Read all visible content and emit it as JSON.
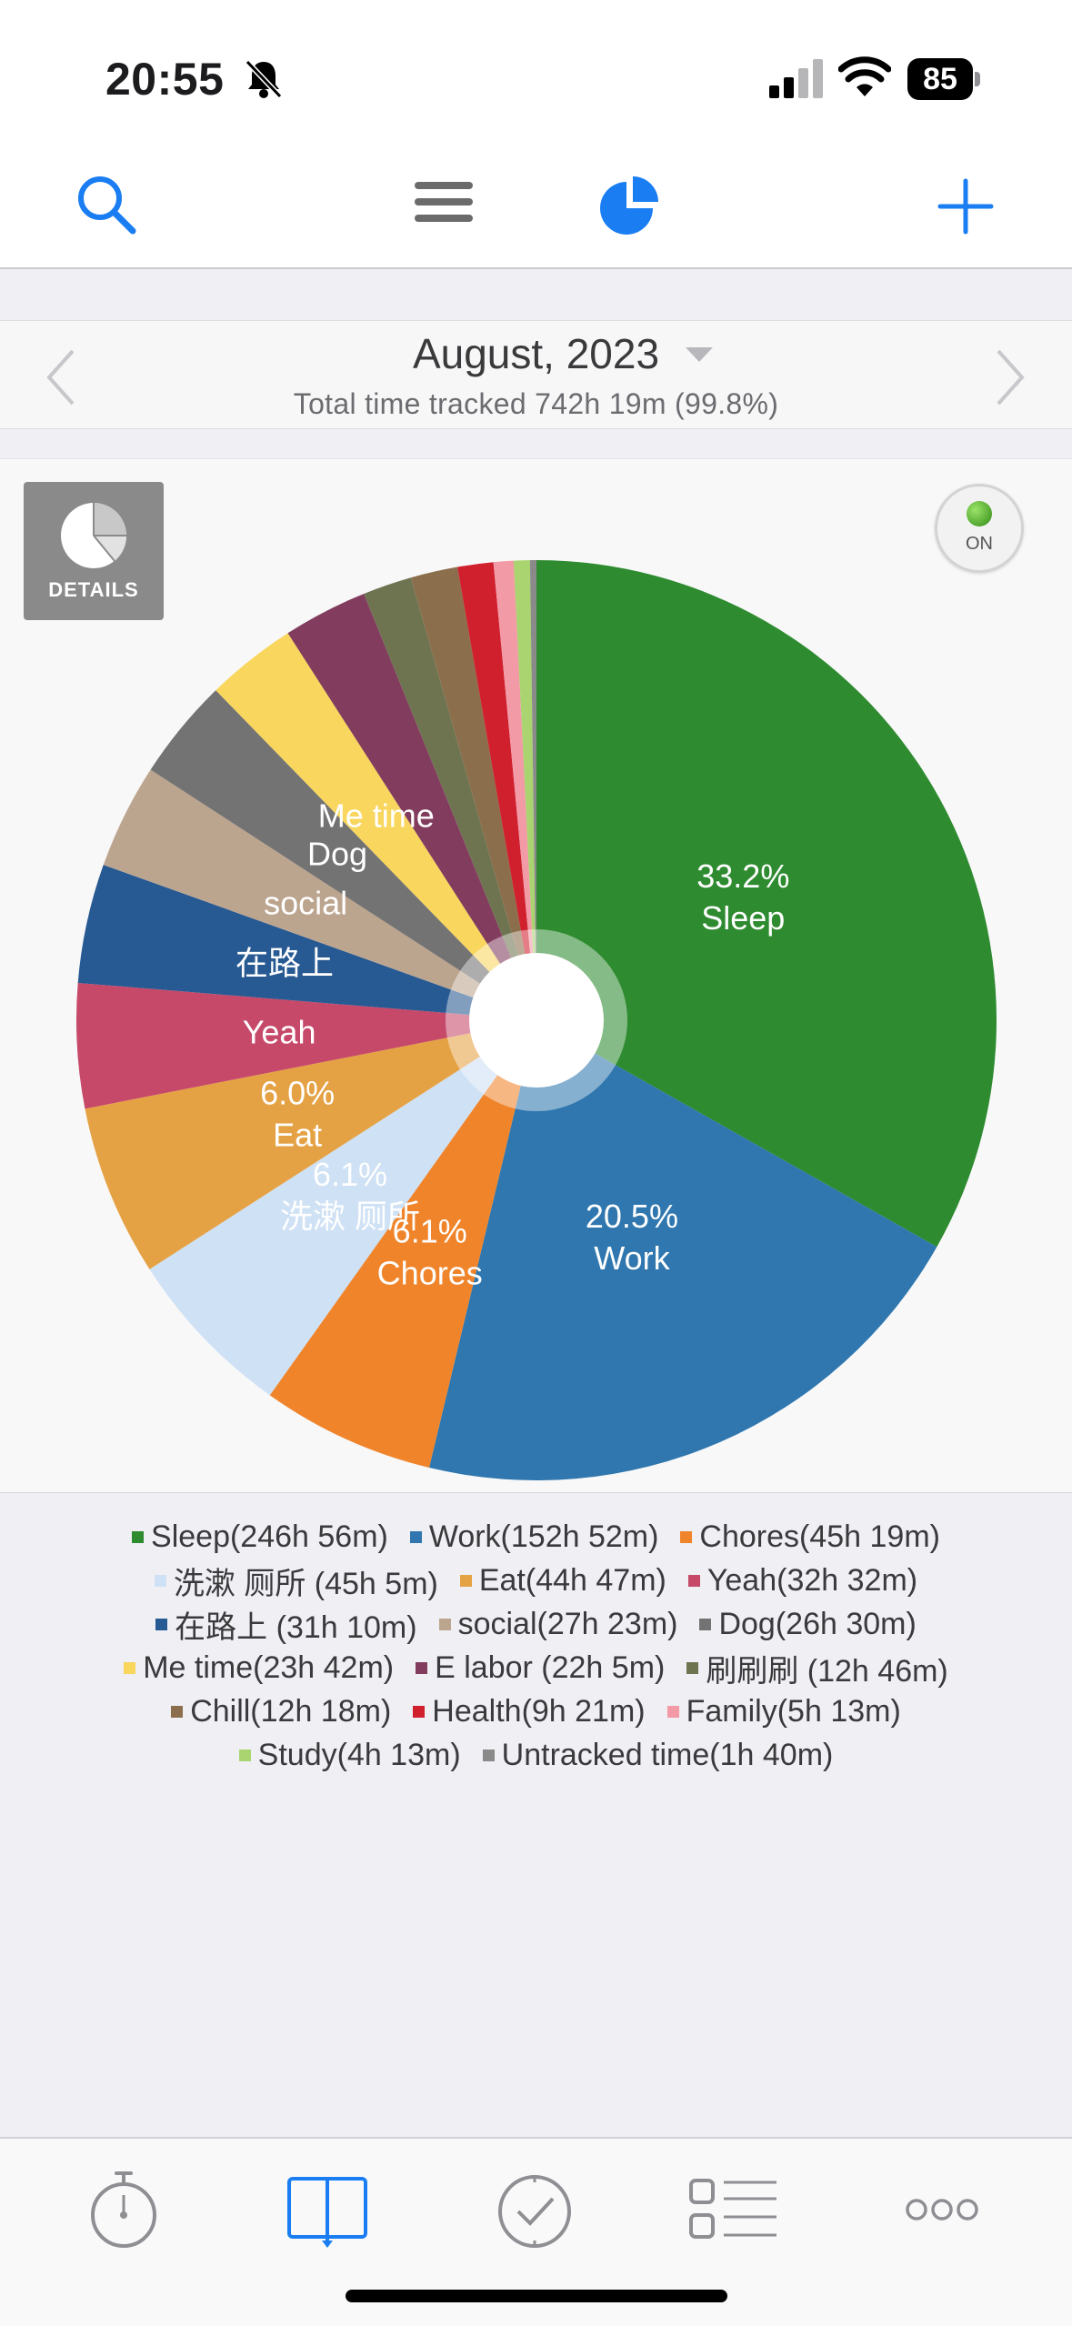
{
  "status_bar": {
    "time": "20:55",
    "battery": "85"
  },
  "nav": {
    "icons": [
      "search-icon",
      "menu-icon",
      "pie-chart-icon",
      "add-icon"
    ],
    "accent_color": "#1a7ef2"
  },
  "header": {
    "month": "August, 2023",
    "subtitle": "Total time tracked 742h 19m (99.8%)"
  },
  "details_button": {
    "label": "DETAILS"
  },
  "toggle": {
    "label": "ON"
  },
  "chart_data": {
    "type": "pie",
    "style": "donut",
    "start_angle": "12 o'clock, clockwise",
    "slices": [
      {
        "name": "Sleep",
        "value_minutes": 14816,
        "display": "Sleep(246h 56m)",
        "color": "#2e8b2f"
      },
      {
        "name": "Work",
        "value_minutes": 9172,
        "display": "Work(152h 52m)",
        "color": "#2f77ae"
      },
      {
        "name": "Chores",
        "value_minutes": 2719,
        "display": "Chores(45h 19m)",
        "color": "#f0842a"
      },
      {
        "name": "洗漱 厕所",
        "value_minutes": 2705,
        "display": "洗漱 厕所 (45h 5m)",
        "color": "#cfe1f4"
      },
      {
        "name": "Eat",
        "value_minutes": 2687,
        "display": "Eat(44h 47m)",
        "color": "#e5a244"
      },
      {
        "name": "Yeah",
        "value_minutes": 1952,
        "display": "Yeah(32h 32m)",
        "color": "#c6496a"
      },
      {
        "name": "在路上",
        "value_minutes": 1870,
        "display": "在路上 (31h 10m)",
        "color": "#275992"
      },
      {
        "name": "social",
        "value_minutes": 1643,
        "display": "social(27h 23m)",
        "color": "#bca58f"
      },
      {
        "name": "Dog",
        "value_minutes": 1590,
        "display": "Dog(26h 30m)",
        "color": "#737373"
      },
      {
        "name": "Me time",
        "value_minutes": 1422,
        "display": "Me time(23h 42m)",
        "color": "#f9d65d"
      },
      {
        "name": "E labor",
        "value_minutes": 1325,
        "display": "E labor (22h 5m)",
        "color": "#823d5e"
      },
      {
        "name": "刷刷刷",
        "value_minutes": 766,
        "display": "刷刷刷 (12h 46m)",
        "color": "#6e7450"
      },
      {
        "name": "Chill",
        "value_minutes": 738,
        "display": "Chill(12h 18m)",
        "color": "#8b6e4c"
      },
      {
        "name": "Health",
        "value_minutes": 561,
        "display": "Health(9h 21m)",
        "color": "#d0202e"
      },
      {
        "name": "Family",
        "value_minutes": 313,
        "display": "Family(5h 13m)",
        "color": "#f29aa6"
      },
      {
        "name": "Study",
        "value_minutes": 253,
        "display": "Study(4h 13m)",
        "color": "#a9d46f"
      },
      {
        "name": "Untracked time",
        "value_minutes": 100,
        "display": "Untracked time(1h 40m)",
        "color": "#8a8a8a"
      }
    ],
    "slice_labels": [
      {
        "slice": "Sleep",
        "lines": [
          "33.2%",
          "Sleep"
        ]
      },
      {
        "slice": "Work",
        "lines": [
          "20.5%",
          "Work"
        ]
      },
      {
        "slice": "Chores",
        "lines": [
          "6.1%",
          "Chores"
        ]
      },
      {
        "slice": "洗漱 厕所",
        "lines": [
          "6.1%",
          "洗漱 厕所"
        ]
      },
      {
        "slice": "Eat",
        "lines": [
          "6.0%",
          "Eat"
        ]
      },
      {
        "slice": "Yeah",
        "lines": [
          "Yeah"
        ]
      },
      {
        "slice": "在路上",
        "lines": [
          "在路上"
        ]
      },
      {
        "slice": "social",
        "lines": [
          "social"
        ]
      },
      {
        "slice": "Dog",
        "lines": [
          "Dog"
        ]
      },
      {
        "slice": "Me time",
        "lines": [
          "Me time"
        ]
      }
    ],
    "legend": [
      [
        "Sleep(246h 56m)",
        "Work(152h 52m)",
        "Chores(45h 19m)"
      ],
      [
        "洗漱 厕所 (45h 5m)",
        "Eat(44h 47m)",
        "Yeah(32h 32m)"
      ],
      [
        "在路上 (31h 10m)",
        "social(27h 23m)",
        "Dog(26h 30m)"
      ],
      [
        "Me time(23h 42m)",
        "E labor (22h 5m)",
        "刷刷刷 (12h 46m)"
      ],
      [
        "Chill(12h 18m)",
        "Health(9h 21m)",
        "Family(5h 13m)"
      ],
      [
        "Study(4h 13m)",
        "Untracked time(1h 40m)"
      ]
    ]
  },
  "tab_bar": {
    "tabs": [
      "stopwatch-icon",
      "book-icon",
      "clock-check-icon",
      "list-icon",
      "more-icon"
    ],
    "active": "book-icon"
  }
}
